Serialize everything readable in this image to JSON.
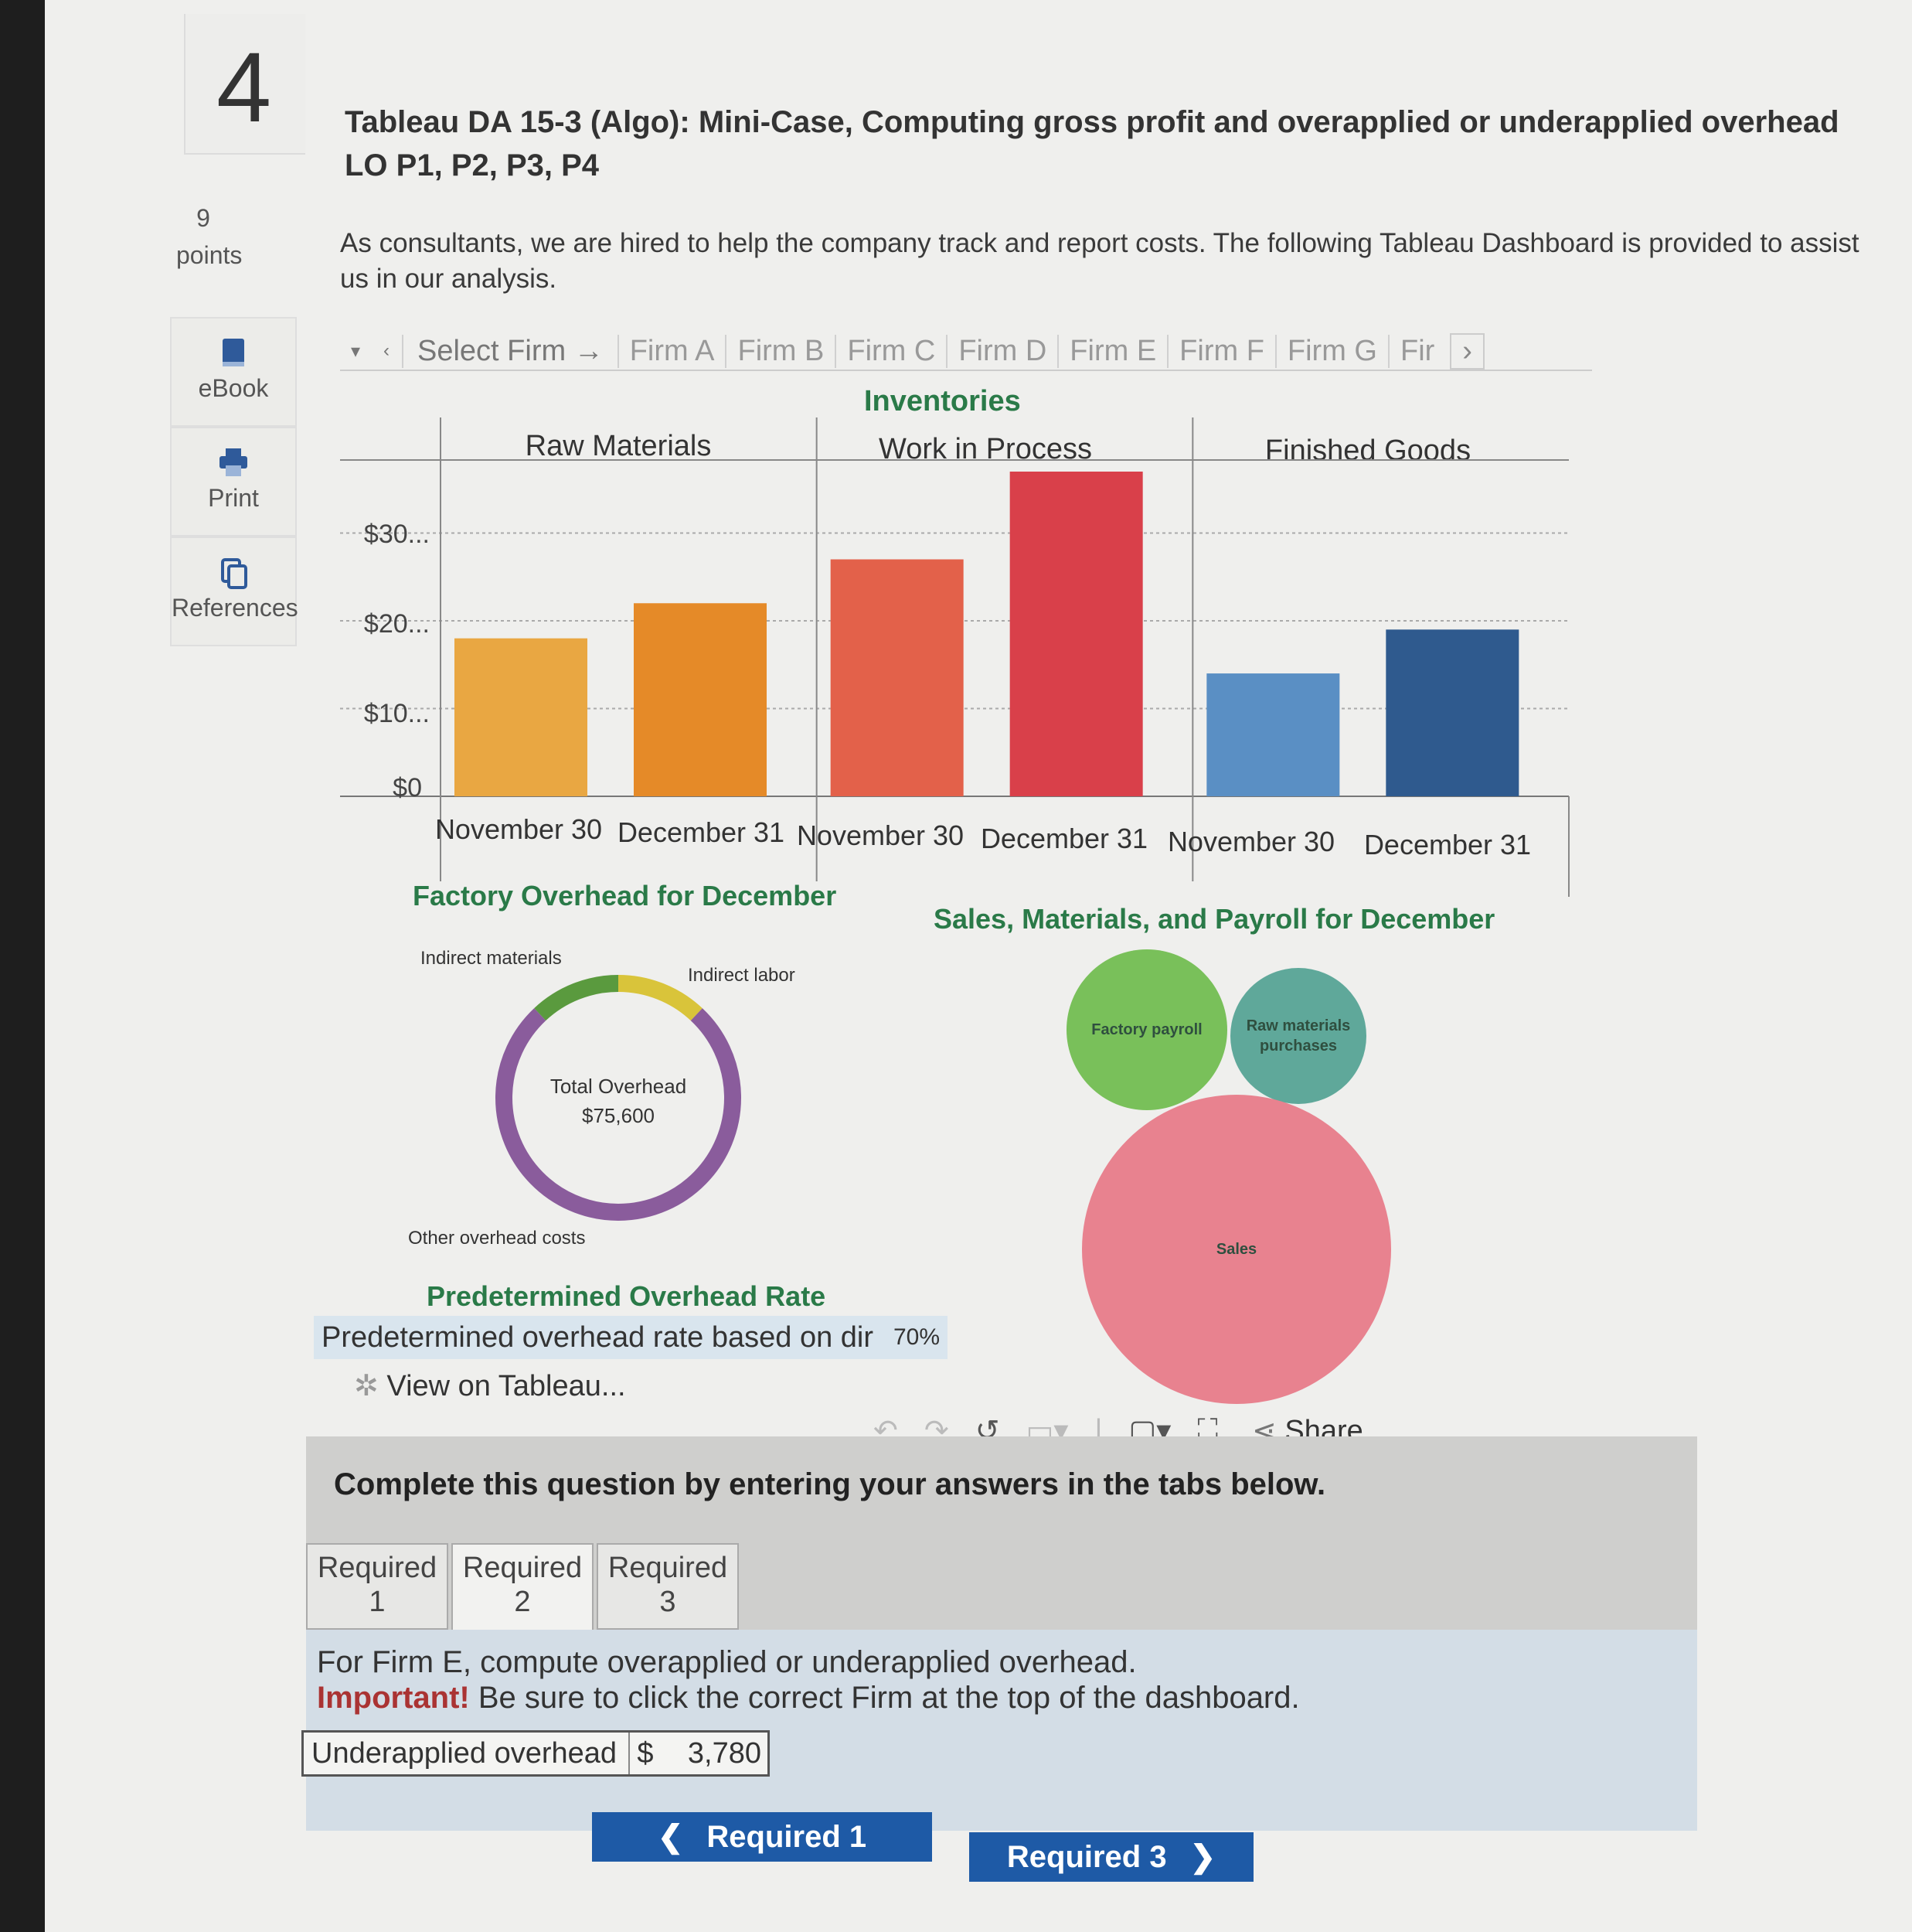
{
  "question": {
    "number": "4",
    "points_value": "9",
    "points_label": "points",
    "title": "Tableau DA 15-3 (Algo): Mini-Case, Computing gross profit and overapplied or underapplied overhead LO P1, P2, P3, P4",
    "intro": "As consultants, we are hired to help the company track and report costs. The following Tableau Dashboard is provided to assist us in our analysis."
  },
  "sidebar": {
    "items": [
      {
        "label": "eBook",
        "icon": "book-icon"
      },
      {
        "label": "Print",
        "icon": "printer-icon"
      },
      {
        "label": "References",
        "icon": "copy-icon"
      }
    ]
  },
  "firm_selector": {
    "caret": "▾",
    "prev": "‹",
    "label": "Select Firm →",
    "firms": [
      "Firm A",
      "Firm B",
      "Firm C",
      "Firm D",
      "Firm E",
      "Firm F",
      "Firm G",
      "Fir"
    ],
    "next": "›"
  },
  "inventories": {
    "title": "Inventories",
    "columns": [
      "Raw Materials",
      "Work in Process",
      "Finished Goods"
    ],
    "y_ticks": [
      "$30...",
      "$20...",
      "$10...",
      "$0"
    ],
    "x_labels": [
      "November 30",
      "December 31",
      "November 30",
      "December 31",
      "November 30",
      "December 31"
    ]
  },
  "chart_data": [
    {
      "type": "bar",
      "title": "Inventories",
      "panels": [
        "Raw Materials",
        "Work in Process",
        "Finished Goods"
      ],
      "categories": [
        "November 30",
        "December 31"
      ],
      "series": [
        {
          "name": "Raw Materials",
          "values": [
            18000,
            22000
          ],
          "colors": [
            "#e9a742",
            "#e58a28"
          ]
        },
        {
          "name": "Work in Process",
          "values": [
            27000,
            37000
          ],
          "colors": [
            "#e3614a",
            "#d9404a"
          ]
        },
        {
          "name": "Finished Goods",
          "values": [
            14000,
            19000
          ],
          "colors": [
            "#5a8fc4",
            "#2f5a8e"
          ]
        }
      ],
      "ylim": [
        0,
        37000
      ],
      "y_ticks": [
        "$0",
        "$10...",
        "$20...",
        "$30..."
      ],
      "grid": true
    },
    {
      "type": "pie",
      "title": "Factory Overhead for December",
      "center_label": "Total Overhead",
      "center_value": "$75,600",
      "slices": [
        {
          "label": "Indirect materials",
          "fraction": 0.12,
          "color": "#5a9a3e"
        },
        {
          "label": "Indirect labor",
          "fraction": 0.12,
          "color": "#d9c43a"
        },
        {
          "label": "Other overhead costs",
          "fraction": 0.76,
          "color": "#8a5c9c"
        }
      ]
    },
    {
      "type": "bubble",
      "title": "Sales, Materials, and Payroll for December",
      "bubbles": [
        {
          "label": "Factory payroll",
          "relative_size": 0.52,
          "color": "#79c05a"
        },
        {
          "label": "Raw materials purchases",
          "relative_size": 0.44,
          "color": "#5fa89a"
        },
        {
          "label": "Sales",
          "relative_size": 1.0,
          "color": "#e8828f"
        }
      ]
    }
  ],
  "overhead_rate": {
    "title": "Predetermined Overhead Rate",
    "label": "Predetermined overhead rate based on dir",
    "value": "70%"
  },
  "tableau_footer": {
    "view_label": "View on Tableau...",
    "share_label": "Share"
  },
  "answer_section": {
    "instruction": "Complete this question by entering your answers in the tabs below.",
    "tabs": [
      {
        "line1": "Required",
        "line2": "1"
      },
      {
        "line1": "Required",
        "line2": "2"
      },
      {
        "line1": "Required",
        "line2": "3"
      }
    ],
    "active_tab": 1,
    "prompt": "For Firm E, compute overapplied or underapplied overhead.",
    "important_prefix": "Important!",
    "important_text": " Be sure to click the correct Firm at the top of the dashboard.",
    "answer_label": "Underapplied overhead",
    "currency": "$",
    "answer_value": "3,780",
    "prev_button": "Required 1",
    "next_button": "Required 3"
  },
  "colors": {
    "accent_green": "#2a7a48",
    "button_blue": "#1e5aa6"
  }
}
